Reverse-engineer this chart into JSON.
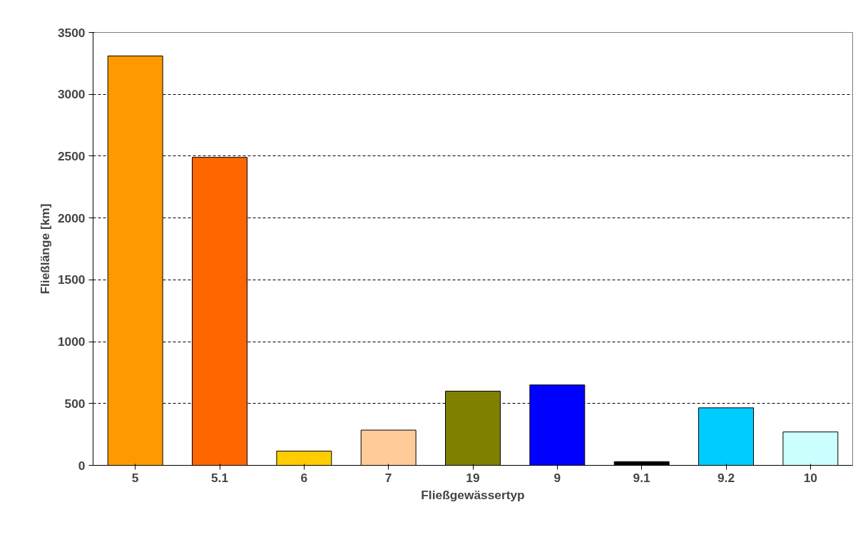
{
  "chart_data": {
    "type": "bar",
    "xlabel": "Fließgewässertyp",
    "ylabel": "Fließlänge [km]",
    "categories": [
      "5",
      "5.1",
      "6",
      "7",
      "19",
      "9",
      "9.1",
      "9.2",
      "10"
    ],
    "values": [
      3310,
      2490,
      115,
      285,
      600,
      650,
      30,
      465,
      270
    ],
    "colors": [
      "#ff9900",
      "#ff6600",
      "#ffcc00",
      "#ffcc99",
      "#808000",
      "#0000ff",
      "#000000",
      "#00ccff",
      "#ccffff"
    ],
    "ylim": [
      0,
      3500
    ],
    "yticks": [
      0,
      500,
      1000,
      1500,
      2000,
      2500,
      3000,
      3500
    ],
    "grid": "y"
  }
}
